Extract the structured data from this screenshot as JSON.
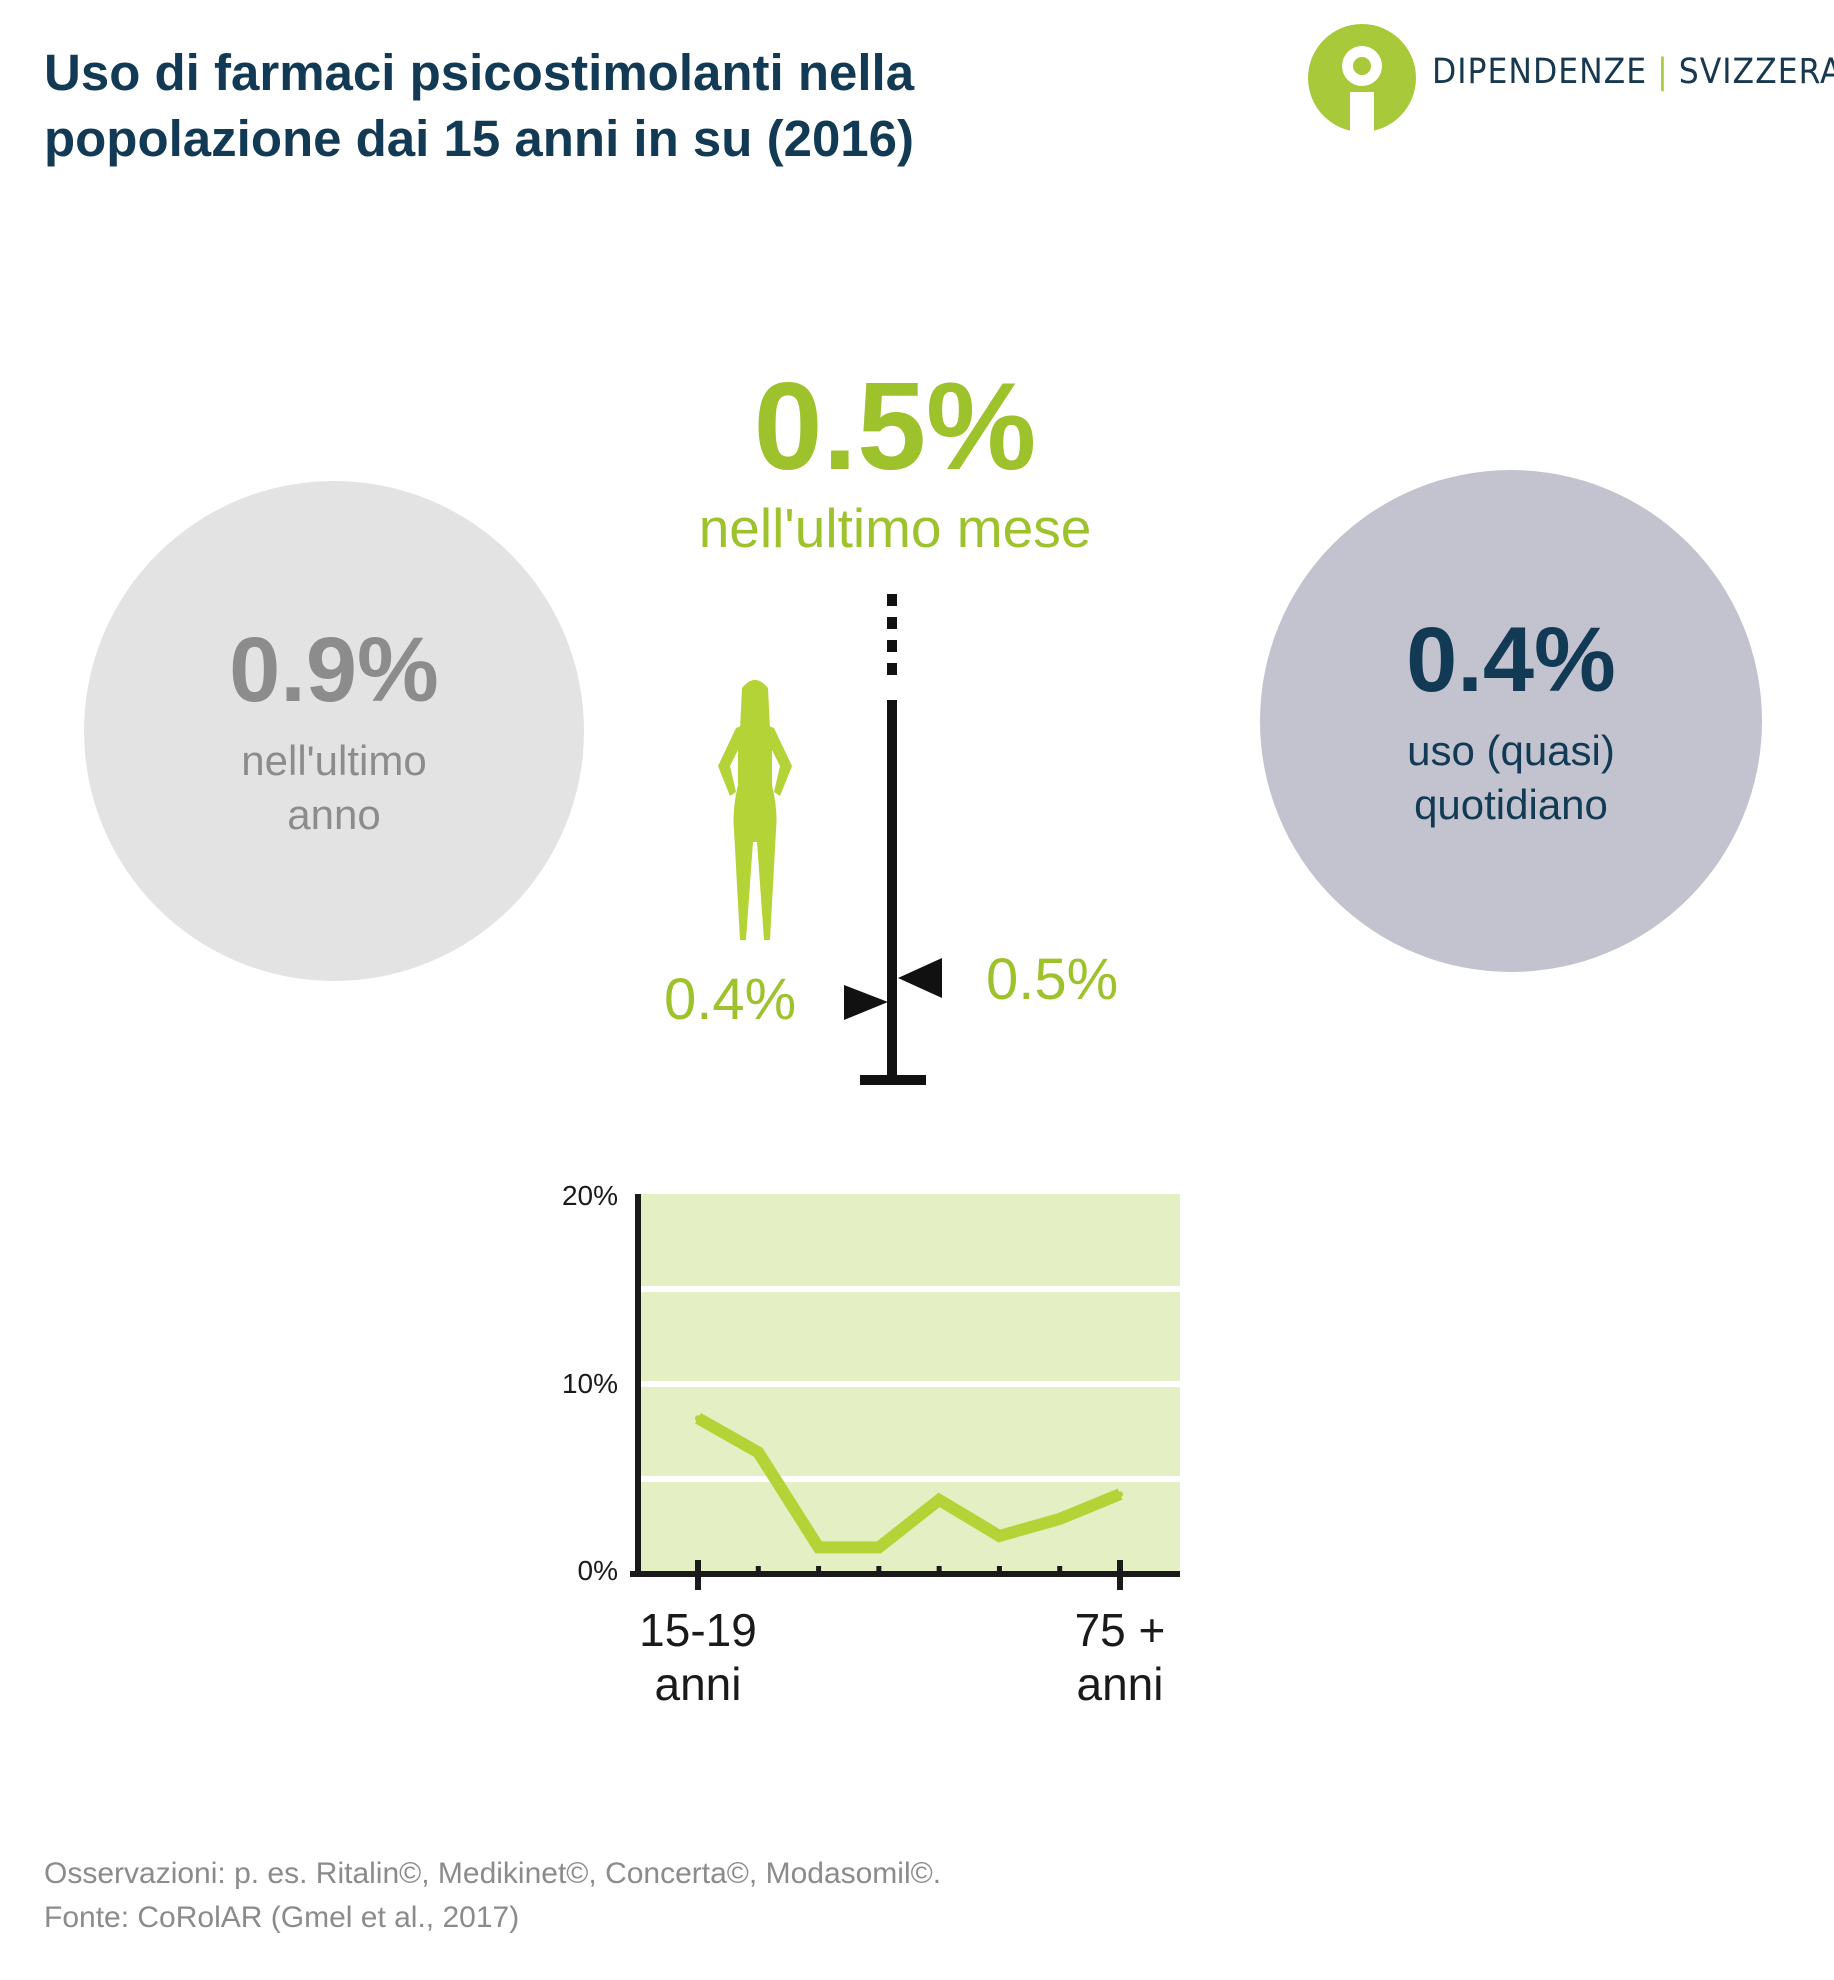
{
  "title": {
    "line1": "Uso di farmaci psicostimolanti nella",
    "line2": "popolazione dai 15 anni in su (2016)"
  },
  "logo": {
    "left": "DIPENDENZE",
    "separator": "|",
    "right": "SVIZZERA",
    "colors": {
      "brand_green": "#a7c93a",
      "brand_navy": "#17384f"
    }
  },
  "last_month": {
    "value": "0.5%",
    "label": "nell'ultimo mese"
  },
  "last_year": {
    "value": "0.9%",
    "label_line1": "nell'ultimo",
    "label_line2": "anno"
  },
  "daily_use": {
    "value": "0.4%",
    "label_line1": "uso (quasi)",
    "label_line2": "quotidiano"
  },
  "gender": {
    "female": {
      "value": "0.4%",
      "icon": "woman-silhouette-icon"
    },
    "male": {
      "value": "0.5%",
      "icon": "man-silhouette-icon"
    }
  },
  "chart_data": {
    "type": "line",
    "title": "",
    "xlabel": "",
    "ylabel": "",
    "ylim": [
      0,
      20
    ],
    "ytick_labels": [
      "20%",
      "10%",
      "0%"
    ],
    "yticks": [
      20,
      10,
      0
    ],
    "x_labels": {
      "first_line1": "15-19",
      "first_line2": "anni",
      "last_line1": "75 +",
      "last_line2": "anni"
    },
    "series": [
      {
        "values": [
          8.2,
          6.4,
          1.4,
          1.4,
          3.9,
          2.0,
          2.9,
          4.2
        ]
      }
    ],
    "grid": true,
    "colors": {
      "line": "#b4d336",
      "plot_bg": "#e5efc4",
      "grid": "#ffffff",
      "axis": "#1a1a1a"
    }
  },
  "footer": {
    "notes": "Osservazioni: p. es. Ritalin©, Medikinet©, Concerta©, Modasomil©.",
    "source": "Fonte: CoRolAR (Gmel et al., 2017)"
  }
}
